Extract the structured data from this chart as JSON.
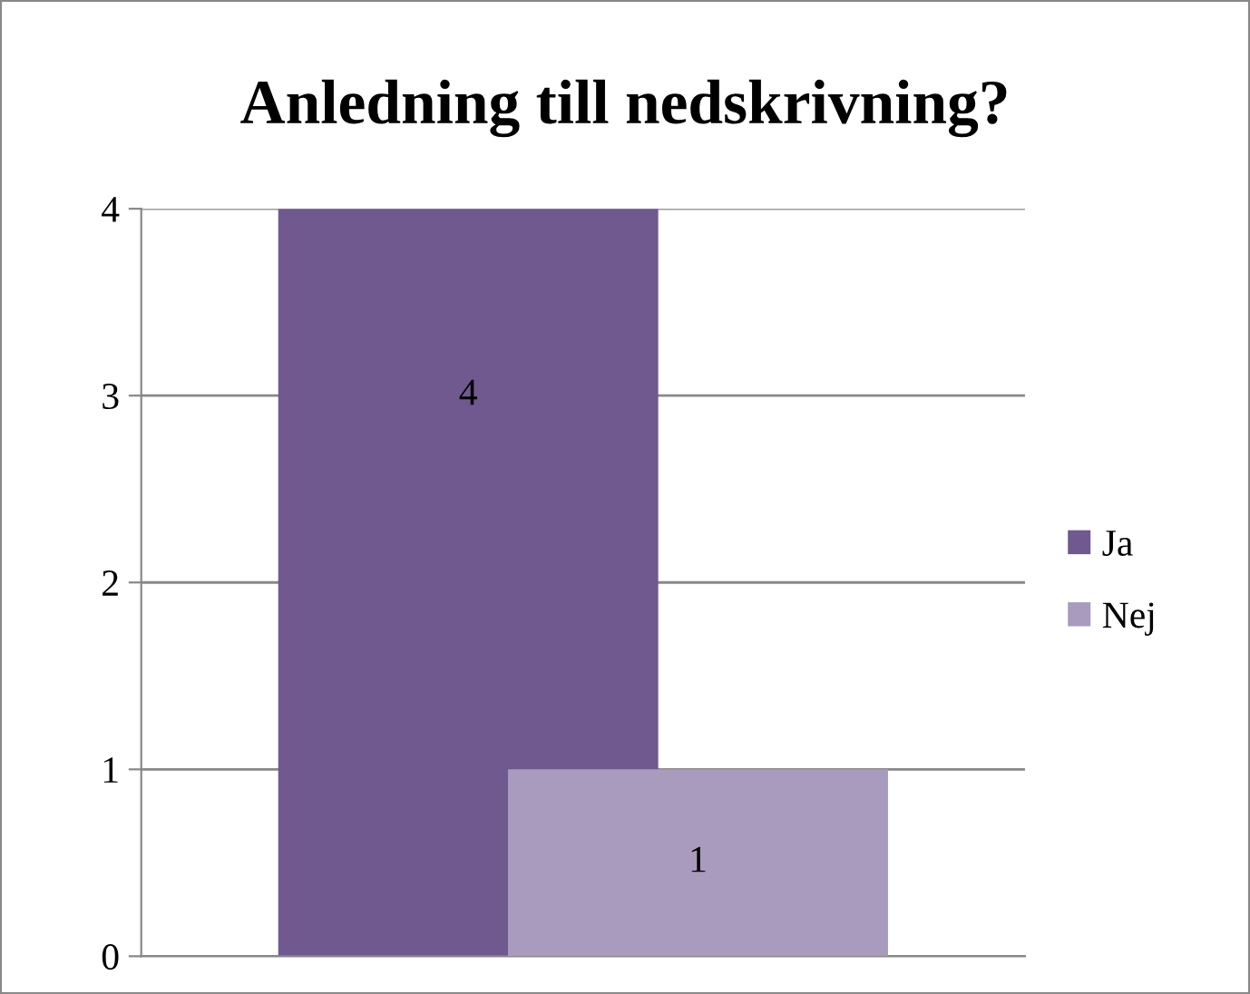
{
  "chart_data": {
    "type": "bar",
    "title": "Anledning till nedskrivning?",
    "categories": [
      null
    ],
    "series": [
      {
        "name": "Ja",
        "color": "#70598f",
        "values": [
          4
        ]
      },
      {
        "name": "Nej",
        "color": "#a99bbd",
        "values": [
          1
        ]
      }
    ],
    "ylim": [
      0,
      4
    ],
    "yticks": [
      0,
      1,
      2,
      3,
      4
    ],
    "grid": "y",
    "legend": "right",
    "data_labels": true
  }
}
